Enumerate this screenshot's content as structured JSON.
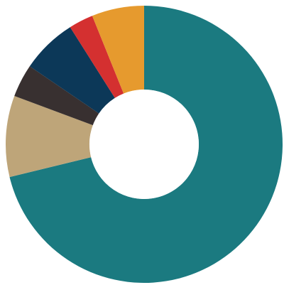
{
  "chart_data": {
    "type": "pie",
    "donut": true,
    "legend": "none",
    "slices": [
      {
        "value": 72.2,
        "color": "#1b7a80"
      },
      {
        "value": 9.6,
        "color": "#bea579"
      },
      {
        "value": 3.9,
        "color": "#383030"
      },
      {
        "value": 6.6,
        "color": "#0c3858"
      },
      {
        "value": 2.9,
        "color": "#d43030"
      },
      {
        "value": 6.2,
        "color": "#e69a2e"
      }
    ]
  }
}
